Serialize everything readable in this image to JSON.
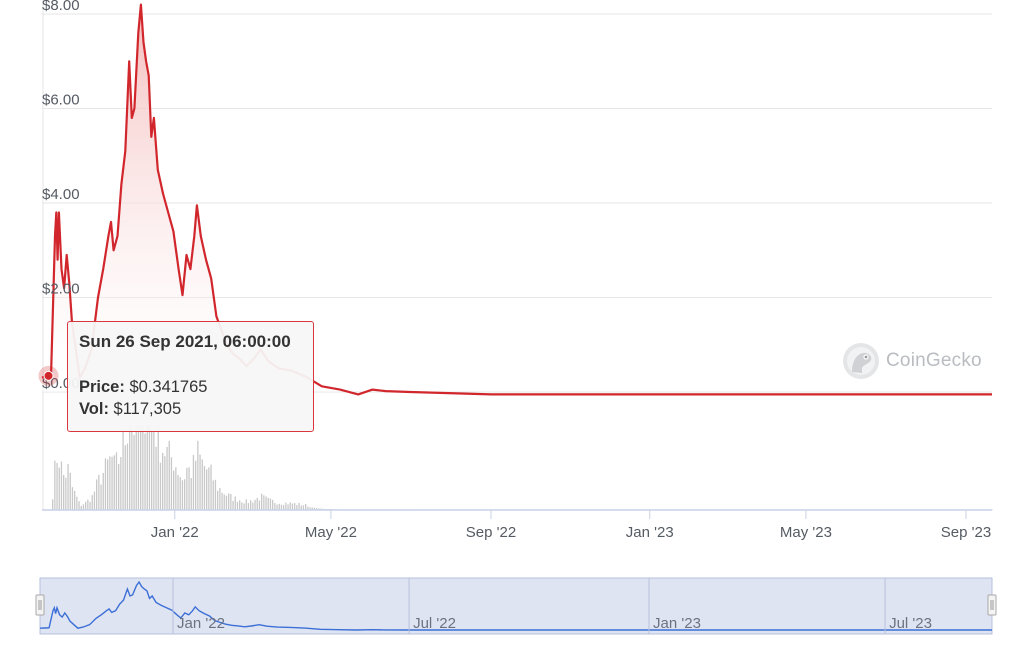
{
  "brand": {
    "name": "CoinGecko",
    "logo_icon": "gecko-logo-icon"
  },
  "tooltip": {
    "date": "Sun 26 Sep 2021, 06:00:00",
    "price_label": "Price:",
    "price_value": "$0.341765",
    "vol_label": "Vol:",
    "vol_value": "$117,305"
  },
  "colors": {
    "price_line": "#d1262c",
    "price_fill": "#f3b5b5",
    "volume_bars": "#c8c8c8",
    "grid": "#e6e6e6",
    "navigator_line": "#3b6fd6",
    "navigator_bg": "#dfe4f3",
    "navigator_selected": "#c6cfe9"
  },
  "chart_data": {
    "type": "line",
    "xaxis": {
      "start": "2021-09-21",
      "end": "2023-09-21",
      "ticks": [
        {
          "date": "2022-01-01",
          "label": "Jan '22"
        },
        {
          "date": "2022-05-01",
          "label": "May '22"
        },
        {
          "date": "2022-09-01",
          "label": "Sep '22"
        },
        {
          "date": "2023-01-01",
          "label": "Jan '23"
        },
        {
          "date": "2023-05-01",
          "label": "May '23"
        },
        {
          "date": "2023-09-01",
          "label": "Sep '23"
        }
      ]
    },
    "yaxis": {
      "min": 0,
      "max": 8,
      "ticks": [
        {
          "value": 8,
          "label": "$8.00"
        },
        {
          "value": 6,
          "label": "$6.00"
        },
        {
          "value": 4,
          "label": "$4.00"
        },
        {
          "value": 2,
          "label": "$2.00"
        },
        {
          "value": 0,
          "label": "$0.00"
        }
      ]
    },
    "grid": true,
    "price_series": [
      {
        "x": "2021-09-21",
        "y": 0.3
      },
      {
        "x": "2021-09-24",
        "y": 0.34
      },
      {
        "x": "2021-09-26",
        "y": 0.34
      },
      {
        "x": "2021-09-28",
        "y": 0.4
      },
      {
        "x": "2021-10-01",
        "y": 3.3
      },
      {
        "x": "2021-10-02",
        "y": 3.8
      },
      {
        "x": "2021-10-03",
        "y": 2.8
      },
      {
        "x": "2021-10-04",
        "y": 3.8
      },
      {
        "x": "2021-10-06",
        "y": 2.6
      },
      {
        "x": "2021-10-08",
        "y": 2.2
      },
      {
        "x": "2021-10-10",
        "y": 2.9
      },
      {
        "x": "2021-10-12",
        "y": 2.3
      },
      {
        "x": "2021-10-14",
        "y": 1.5
      },
      {
        "x": "2021-10-17",
        "y": 0.9
      },
      {
        "x": "2021-10-20",
        "y": 0.3
      },
      {
        "x": "2021-10-24",
        "y": 0.5
      },
      {
        "x": "2021-10-29",
        "y": 0.9
      },
      {
        "x": "2021-11-03",
        "y": 2.0
      },
      {
        "x": "2021-11-07",
        "y": 2.6
      },
      {
        "x": "2021-11-11",
        "y": 3.3
      },
      {
        "x": "2021-11-13",
        "y": 3.6
      },
      {
        "x": "2021-11-15",
        "y": 3.0
      },
      {
        "x": "2021-11-18",
        "y": 3.3
      },
      {
        "x": "2021-11-21",
        "y": 4.4
      },
      {
        "x": "2021-11-24",
        "y": 5.1
      },
      {
        "x": "2021-11-27",
        "y": 7.0
      },
      {
        "x": "2021-11-29",
        "y": 5.8
      },
      {
        "x": "2021-12-01",
        "y": 6.0
      },
      {
        "x": "2021-12-04",
        "y": 7.6
      },
      {
        "x": "2021-12-06",
        "y": 8.2
      },
      {
        "x": "2021-12-08",
        "y": 7.4
      },
      {
        "x": "2021-12-10",
        "y": 7.0
      },
      {
        "x": "2021-12-12",
        "y": 6.7
      },
      {
        "x": "2021-12-14",
        "y": 5.4
      },
      {
        "x": "2021-12-16",
        "y": 5.8
      },
      {
        "x": "2021-12-19",
        "y": 4.7
      },
      {
        "x": "2021-12-23",
        "y": 4.2
      },
      {
        "x": "2021-12-27",
        "y": 3.8
      },
      {
        "x": "2021-12-31",
        "y": 3.4
      },
      {
        "x": "2022-01-04",
        "y": 2.6
      },
      {
        "x": "2022-01-07",
        "y": 2.05
      },
      {
        "x": "2022-01-10",
        "y": 2.9
      },
      {
        "x": "2022-01-13",
        "y": 2.6
      },
      {
        "x": "2022-01-16",
        "y": 3.3
      },
      {
        "x": "2022-01-18",
        "y": 3.95
      },
      {
        "x": "2022-01-21",
        "y": 3.3
      },
      {
        "x": "2022-01-25",
        "y": 2.8
      },
      {
        "x": "2022-01-29",
        "y": 2.4
      },
      {
        "x": "2022-02-02",
        "y": 1.6
      },
      {
        "x": "2022-02-06",
        "y": 1.3
      },
      {
        "x": "2022-02-10",
        "y": 1.0
      },
      {
        "x": "2022-02-15",
        "y": 0.8
      },
      {
        "x": "2022-02-20",
        "y": 0.7
      },
      {
        "x": "2022-02-25",
        "y": 0.55
      },
      {
        "x": "2022-03-02",
        "y": 0.68
      },
      {
        "x": "2022-03-08",
        "y": 0.9
      },
      {
        "x": "2022-03-14",
        "y": 0.65
      },
      {
        "x": "2022-03-22",
        "y": 0.5
      },
      {
        "x": "2022-04-01",
        "y": 0.45
      },
      {
        "x": "2022-04-12",
        "y": 0.32
      },
      {
        "x": "2022-04-24",
        "y": 0.12
      },
      {
        "x": "2022-05-08",
        "y": 0.05
      },
      {
        "x": "2022-05-22",
        "y": -0.05
      },
      {
        "x": "2022-06-02",
        "y": 0.05
      },
      {
        "x": "2022-06-12",
        "y": 0.02
      },
      {
        "x": "2022-07-01",
        "y": 0.0
      },
      {
        "x": "2022-09-01",
        "y": -0.05
      },
      {
        "x": "2023-01-01",
        "y": -0.05
      },
      {
        "x": "2023-05-01",
        "y": -0.05
      },
      {
        "x": "2023-09-21",
        "y": -0.05
      }
    ],
    "volume_series": "daily trading volume bars, highest in Nov 2021 – Jan 2022, near zero after Jun 2022",
    "navigator": {
      "range_ticks": [
        "Jan '22",
        "Jul '22",
        "Jan '23",
        "Jul '23"
      ]
    }
  }
}
